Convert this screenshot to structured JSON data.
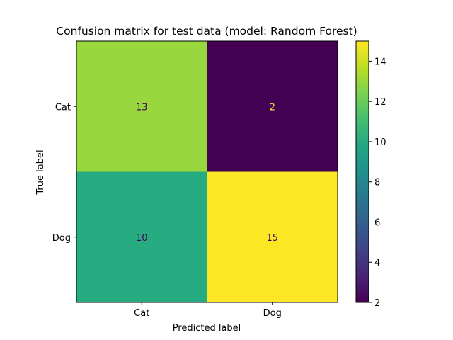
{
  "chart_data": {
    "type": "heatmap",
    "title": "Confusion matrix for test data (model: Random Forest)",
    "xlabel": "Predicted label",
    "ylabel": "True label",
    "x_categories": [
      "Cat",
      "Dog"
    ],
    "y_categories": [
      "Cat",
      "Dog"
    ],
    "values": [
      [
        13,
        2
      ],
      [
        10,
        15
      ]
    ],
    "colormap": "viridis",
    "colorbar": {
      "range": [
        2,
        15
      ],
      "ticks": [
        2,
        4,
        6,
        8,
        10,
        12,
        14
      ]
    },
    "grid": false
  }
}
